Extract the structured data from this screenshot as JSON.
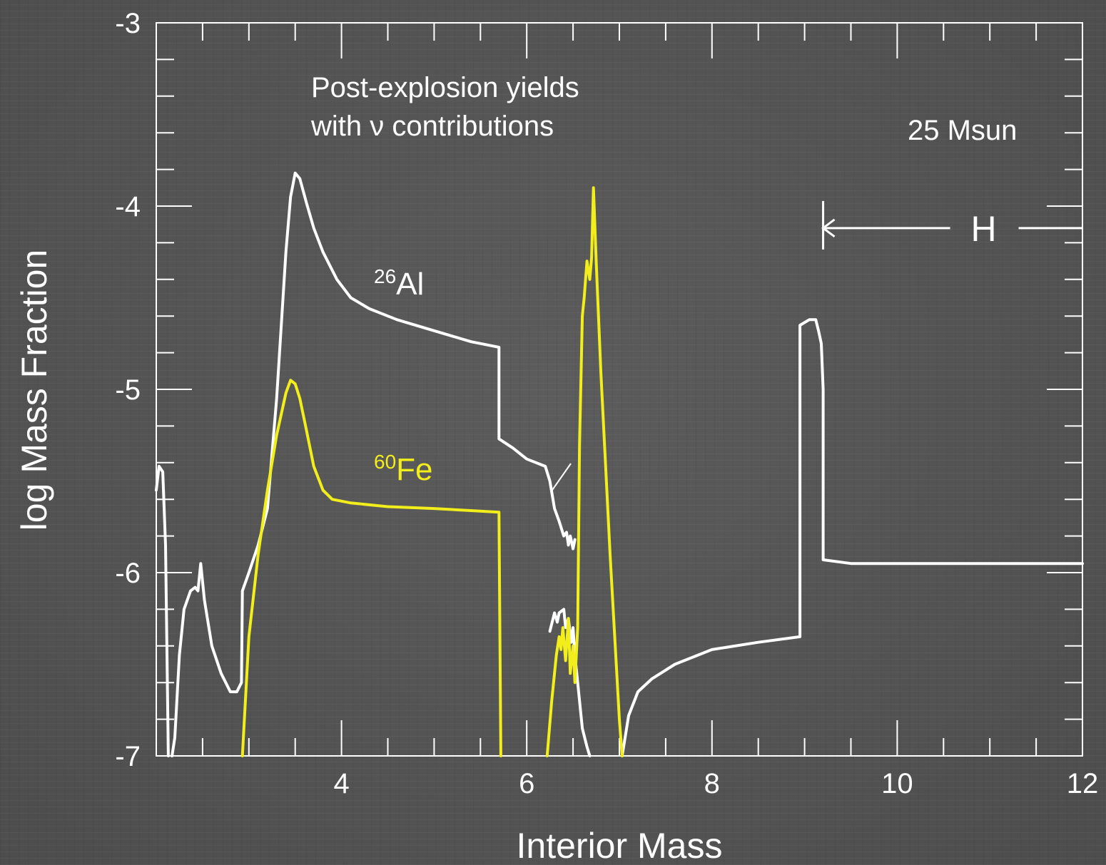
{
  "chart_data": {
    "type": "line",
    "xlabel": "Interior Mass",
    "ylabel": "log Mass Fraction",
    "xlim": [
      2,
      12
    ],
    "ylim": [
      -7,
      -3
    ],
    "x_ticks": [
      4,
      6,
      8,
      10,
      12
    ],
    "y_ticks": [
      -3,
      -4,
      -5,
      -6,
      -7
    ],
    "x_tick_labels": [
      "4",
      "6",
      "8",
      "10",
      "12"
    ],
    "y_tick_labels": [
      "-3",
      "-4",
      "-5",
      "-6",
      "-7"
    ],
    "grid": false,
    "annotations": {
      "note_line1": "Post-explosion yields",
      "note_line2": "with ν contributions",
      "mass_label": "25 Msun",
      "h_label": "H"
    },
    "h_region_start": 9.2,
    "series": [
      {
        "name": "26Al",
        "label_sup": "26",
        "label_main": "Al",
        "color": "#ffffff",
        "segments": [
          [
            [
              2.0,
              -5.55
            ],
            [
              2.03,
              -5.42
            ],
            [
              2.07,
              -5.45
            ],
            [
              2.1,
              -5.85
            ],
            [
              2.13,
              -7.0
            ]
          ],
          [
            [
              2.17,
              -7.0
            ],
            [
              2.2,
              -6.9
            ],
            [
              2.25,
              -6.45
            ],
            [
              2.3,
              -6.2
            ],
            [
              2.37,
              -6.1
            ],
            [
              2.42,
              -6.08
            ],
            [
              2.45,
              -6.1
            ],
            [
              2.48,
              -5.95
            ],
            [
              2.52,
              -6.15
            ],
            [
              2.6,
              -6.4
            ],
            [
              2.7,
              -6.55
            ],
            [
              2.8,
              -6.65
            ],
            [
              2.87,
              -6.65
            ],
            [
              2.92,
              -6.6
            ],
            [
              2.93,
              -6.1
            ],
            [
              3.0,
              -6.0
            ],
            [
              3.1,
              -5.85
            ],
            [
              3.2,
              -5.65
            ],
            [
              3.3,
              -5.05
            ],
            [
              3.35,
              -4.65
            ],
            [
              3.4,
              -4.25
            ],
            [
              3.45,
              -3.95
            ],
            [
              3.5,
              -3.82
            ],
            [
              3.55,
              -3.85
            ],
            [
              3.62,
              -3.98
            ],
            [
              3.7,
              -4.12
            ],
            [
              3.8,
              -4.25
            ],
            [
              3.95,
              -4.4
            ],
            [
              4.1,
              -4.5
            ],
            [
              4.3,
              -4.56
            ],
            [
              4.6,
              -4.62
            ],
            [
              5.0,
              -4.68
            ],
            [
              5.4,
              -4.74
            ],
            [
              5.7,
              -4.77
            ],
            [
              5.7,
              -5.27
            ],
            [
              5.85,
              -5.32
            ],
            [
              6.0,
              -5.38
            ],
            [
              6.2,
              -5.42
            ],
            [
              6.25,
              -5.5
            ],
            [
              6.3,
              -5.65
            ],
            [
              6.35,
              -5.72
            ],
            [
              6.4,
              -5.8
            ],
            [
              6.43,
              -5.78
            ],
            [
              6.45,
              -5.85
            ],
            [
              6.47,
              -5.8
            ],
            [
              6.5,
              -5.87
            ],
            [
              6.52,
              -5.82
            ]
          ],
          [
            [
              6.25,
              -6.32
            ],
            [
              6.3,
              -6.22
            ],
            [
              6.33,
              -6.27
            ],
            [
              6.35,
              -6.22
            ],
            [
              6.4,
              -6.2
            ],
            [
              6.42,
              -6.3
            ],
            [
              6.45,
              -6.25
            ],
            [
              6.48,
              -6.38
            ],
            [
              6.5,
              -6.3
            ],
            [
              6.52,
              -6.45
            ],
            [
              6.55,
              -6.6
            ],
            [
              6.6,
              -6.85
            ],
            [
              6.65,
              -6.95
            ],
            [
              6.68,
              -7.0
            ]
          ],
          [
            [
              7.03,
              -7.0
            ],
            [
              7.1,
              -6.78
            ],
            [
              7.2,
              -6.65
            ],
            [
              7.35,
              -6.58
            ],
            [
              7.6,
              -6.5
            ],
            [
              8.0,
              -6.42
            ],
            [
              8.5,
              -6.38
            ],
            [
              8.95,
              -6.35
            ],
            [
              8.95,
              -4.65
            ],
            [
              9.05,
              -4.62
            ],
            [
              9.12,
              -4.62
            ],
            [
              9.15,
              -4.68
            ],
            [
              9.18,
              -4.75
            ],
            [
              9.2,
              -5.0
            ],
            [
              9.2,
              -5.93
            ],
            [
              9.5,
              -5.95
            ],
            [
              10.5,
              -5.95
            ],
            [
              12.0,
              -5.95
            ]
          ]
        ]
      },
      {
        "name": "60Fe",
        "label_sup": "60",
        "label_main": "Fe",
        "color": "#f2ee1c",
        "segments": [
          [
            [
              2.93,
              -7.0
            ],
            [
              3.0,
              -6.35
            ],
            [
              3.1,
              -5.9
            ],
            [
              3.2,
              -5.55
            ],
            [
              3.3,
              -5.25
            ],
            [
              3.4,
              -5.02
            ],
            [
              3.45,
              -4.95
            ],
            [
              3.5,
              -4.97
            ],
            [
              3.55,
              -5.05
            ],
            [
              3.62,
              -5.22
            ],
            [
              3.7,
              -5.42
            ],
            [
              3.8,
              -5.55
            ],
            [
              3.9,
              -5.6
            ],
            [
              4.1,
              -5.62
            ],
            [
              4.5,
              -5.64
            ],
            [
              5.0,
              -5.65
            ],
            [
              5.7,
              -5.67
            ],
            [
              5.72,
              -7.0
            ]
          ],
          [
            [
              6.22,
              -7.0
            ],
            [
              6.27,
              -6.7
            ],
            [
              6.32,
              -6.45
            ],
            [
              6.35,
              -6.35
            ],
            [
              6.37,
              -6.42
            ],
            [
              6.39,
              -6.3
            ],
            [
              6.42,
              -6.48
            ],
            [
              6.45,
              -6.25
            ],
            [
              6.47,
              -6.55
            ],
            [
              6.5,
              -6.4
            ],
            [
              6.52,
              -6.6
            ],
            [
              6.55,
              -6.3
            ],
            [
              6.57,
              -5.3
            ],
            [
              6.6,
              -4.6
            ],
            [
              6.62,
              -4.5
            ],
            [
              6.65,
              -4.3
            ],
            [
              6.68,
              -4.4
            ],
            [
              6.7,
              -4.28
            ],
            [
              6.72,
              -3.9
            ],
            [
              6.75,
              -4.3
            ],
            [
              6.8,
              -4.9
            ],
            [
              6.9,
              -5.9
            ],
            [
              7.0,
              -6.8
            ],
            [
              7.03,
              -7.0
            ]
          ]
        ]
      }
    ]
  }
}
